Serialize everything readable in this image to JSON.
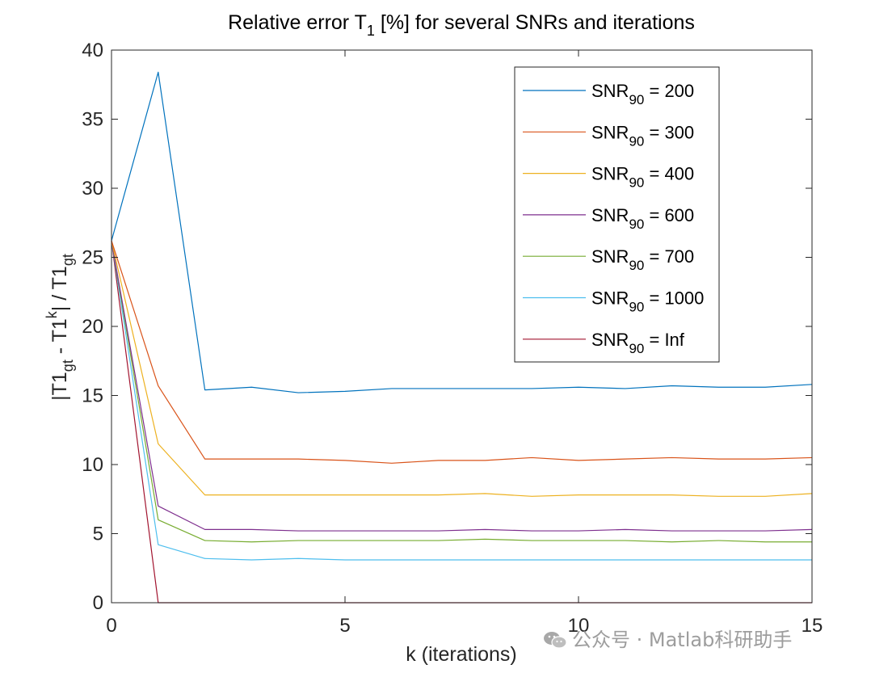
{
  "chart_data": {
    "type": "line",
    "title_main": "Relative error T",
    "title_sub": "1",
    "title_rest": " [%] for several SNRs and iterations",
    "xlabel": "k (iterations)",
    "ylabel_parts": [
      "|T1",
      "gt",
      " - T1",
      "k",
      "| /  T1",
      "gt"
    ],
    "xlim": [
      0,
      15
    ],
    "ylim": [
      0,
      40
    ],
    "xticks": [
      "0",
      "5",
      "10",
      "15"
    ],
    "yticks": [
      "0",
      "5",
      "10",
      "15",
      "20",
      "25",
      "30",
      "35",
      "40"
    ],
    "grid": false,
    "legend_position": "top-right",
    "x": [
      0,
      1,
      2,
      3,
      4,
      5,
      6,
      7,
      8,
      9,
      10,
      11,
      12,
      13,
      14,
      15
    ],
    "series": [
      {
        "name_main": "SNR",
        "name_sub": "90",
        "name_rest": " = 200",
        "color": "#0072BD",
        "values": [
          26.2,
          38.4,
          15.4,
          15.6,
          15.2,
          15.3,
          15.5,
          15.5,
          15.5,
          15.5,
          15.6,
          15.5,
          15.7,
          15.6,
          15.6,
          15.8
        ]
      },
      {
        "name_main": "SNR",
        "name_sub": "90",
        "name_rest": " = 300",
        "color": "#D95319",
        "values": [
          26.2,
          15.7,
          10.4,
          10.4,
          10.4,
          10.3,
          10.1,
          10.3,
          10.3,
          10.5,
          10.3,
          10.4,
          10.5,
          10.4,
          10.4,
          10.5
        ]
      },
      {
        "name_main": "SNR",
        "name_sub": "90",
        "name_rest": " = 400",
        "color": "#EDB120",
        "values": [
          26.2,
          11.5,
          7.8,
          7.8,
          7.8,
          7.8,
          7.8,
          7.8,
          7.9,
          7.7,
          7.8,
          7.8,
          7.8,
          7.7,
          7.7,
          7.9
        ]
      },
      {
        "name_main": "SNR",
        "name_sub": "90",
        "name_rest": " = 600",
        "color": "#7E2F8E",
        "values": [
          26.2,
          7.0,
          5.3,
          5.3,
          5.2,
          5.2,
          5.2,
          5.2,
          5.3,
          5.2,
          5.2,
          5.3,
          5.2,
          5.2,
          5.2,
          5.3
        ]
      },
      {
        "name_main": "SNR",
        "name_sub": "90",
        "name_rest": " = 700",
        "color": "#77AC30",
        "values": [
          26.2,
          6.0,
          4.5,
          4.4,
          4.5,
          4.5,
          4.5,
          4.5,
          4.6,
          4.5,
          4.5,
          4.5,
          4.4,
          4.5,
          4.4,
          4.4
        ]
      },
      {
        "name_main": "SNR",
        "name_sub": "90",
        "name_rest": " = 1000",
        "color": "#4DBEEE",
        "values": [
          26.2,
          4.2,
          3.2,
          3.1,
          3.2,
          3.1,
          3.1,
          3.1,
          3.1,
          3.1,
          3.1,
          3.1,
          3.1,
          3.1,
          3.1,
          3.1
        ]
      },
      {
        "name_main": "SNR",
        "name_sub": "90",
        "name_rest": " = Inf",
        "color": "#A2142F",
        "values": [
          26.2,
          0.0,
          0.0,
          0.0,
          0.0,
          0.0,
          0.0,
          0.0,
          0.0,
          0.0,
          0.0,
          0.0,
          0.0,
          0.0,
          0.0,
          0.0
        ]
      }
    ]
  },
  "watermark": {
    "icon": "wechat-icon",
    "text": "公众号 · Matlab科研助手",
    "color": "#8c8c8c"
  }
}
